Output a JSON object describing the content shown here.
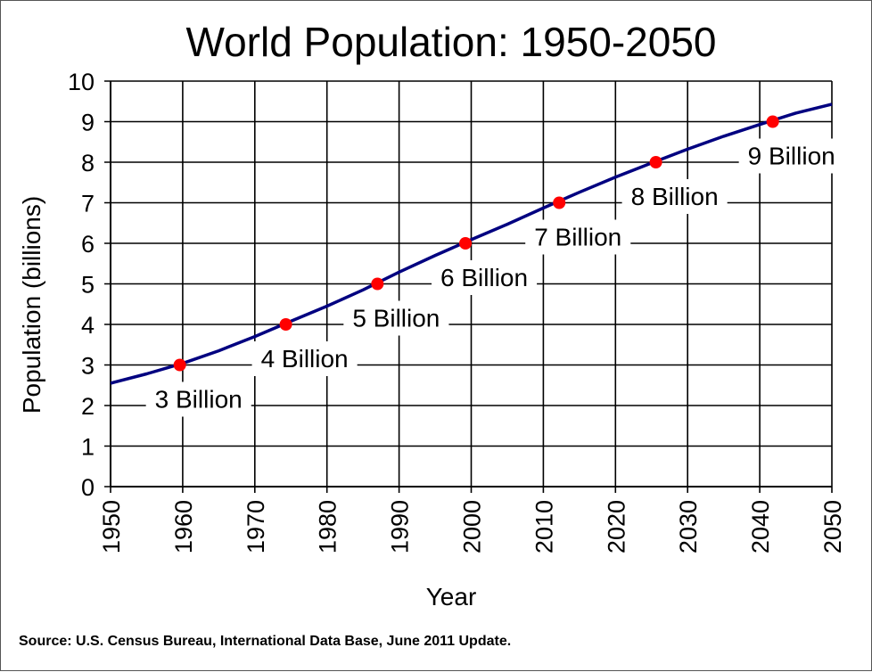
{
  "chart_data": {
    "type": "line",
    "title": "World Population: 1950-2050",
    "xlabel": "Year",
    "ylabel": "Population  (billions)",
    "xlim": [
      1950,
      2050
    ],
    "ylim": [
      0,
      10
    ],
    "x_ticks": [
      "1950",
      "1960",
      "1970",
      "1980",
      "1990",
      "2000",
      "2010",
      "2020",
      "2030",
      "2040",
      "2050"
    ],
    "y_ticks": [
      "0",
      "1",
      "2",
      "3",
      "4",
      "5",
      "6",
      "7",
      "8",
      "9",
      "10"
    ],
    "grid": true,
    "line_color": "#000080",
    "marker_color": "#ff0000",
    "series": [
      {
        "x": [
          1950,
          1955,
          1960,
          1965,
          1970,
          1975,
          1980,
          1985,
          1990,
          1995,
          2000,
          2005,
          2010,
          2015,
          2020,
          2025,
          2030,
          2035,
          2040,
          2045,
          2050
        ],
        "values": [
          2.55,
          2.78,
          3.04,
          3.35,
          3.7,
          4.08,
          4.45,
          4.85,
          5.29,
          5.7,
          6.09,
          6.47,
          6.87,
          7.26,
          7.63,
          7.98,
          8.32,
          8.64,
          8.93,
          9.21,
          9.43
        ]
      }
    ],
    "milestones": [
      {
        "year": 1959.6,
        "value": 3,
        "label": "3 Billion"
      },
      {
        "year": 1974.3,
        "value": 4,
        "label": "4 Billion"
      },
      {
        "year": 1987.0,
        "value": 5,
        "label": "5 Billion"
      },
      {
        "year": 1999.2,
        "value": 6,
        "label": "6 Billion"
      },
      {
        "year": 2012.2,
        "value": 7,
        "label": "7 Billion"
      },
      {
        "year": 2025.6,
        "value": 8,
        "label": "8 Billion"
      },
      {
        "year": 2041.8,
        "value": 9,
        "label": "9 Billion"
      }
    ]
  },
  "source": "Source: U.S. Census Bureau, International Data Base, June 2011 Update."
}
